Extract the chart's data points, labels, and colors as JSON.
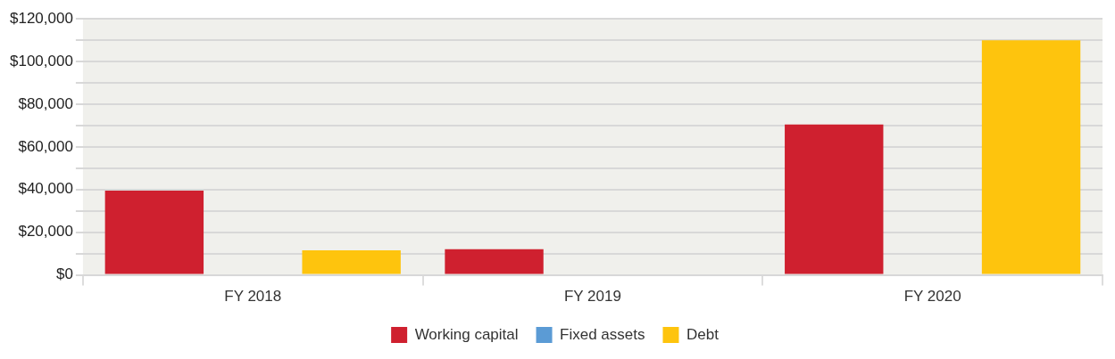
{
  "chart_data": {
    "type": "bar",
    "categories": [
      "FY 2018",
      "FY 2019",
      "FY 2020"
    ],
    "series": [
      {
        "name": "Working capital",
        "color": "#cf202f",
        "values": [
          39500,
          12000,
          70500
        ]
      },
      {
        "name": "Fixed assets",
        "color": "#5b9bd5",
        "values": [
          0,
          0,
          0
        ]
      },
      {
        "name": "Debt",
        "color": "#fec40d",
        "values": [
          11500,
          0,
          110000
        ]
      }
    ],
    "ylim": [
      0,
      120000
    ],
    "yticks": [
      {
        "value": 0,
        "label": "$0"
      },
      {
        "value": 10000,
        "label": null
      },
      {
        "value": 20000,
        "label": "$20,000"
      },
      {
        "value": 30000,
        "label": null
      },
      {
        "value": 40000,
        "label": "$40,000"
      },
      {
        "value": 50000,
        "label": null
      },
      {
        "value": 60000,
        "label": "$60,000"
      },
      {
        "value": 70000,
        "label": null
      },
      {
        "value": 80000,
        "label": "$80,000"
      },
      {
        "value": 90000,
        "label": null
      },
      {
        "value": 100000,
        "label": "$100,000"
      },
      {
        "value": 110000,
        "label": null
      },
      {
        "value": 120000,
        "label": "$120,000"
      }
    ],
    "grid": "y",
    "legend": "bottom"
  }
}
